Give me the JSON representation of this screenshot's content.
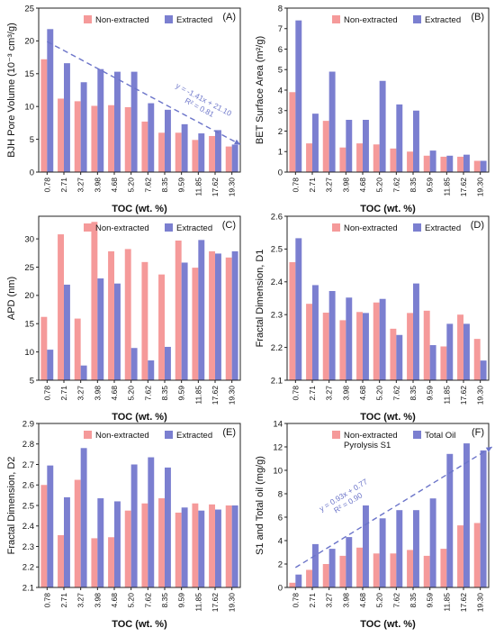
{
  "colors": {
    "non_extracted": "#f59a9a",
    "extracted": "#7b7fd0",
    "trend": "#6b74c9"
  },
  "chart_data": [
    {
      "type": "bar",
      "panel": "(A)",
      "categories": [
        "0.78",
        "2.71",
        "3.27",
        "3.98",
        "4.68",
        "5.20",
        "7.62",
        "8.35",
        "9.59",
        "11.85",
        "17.62",
        "19.30"
      ],
      "ylabel": "BJH Pore Volume (10⁻³ cm³/g)",
      "xlabel": "TOC (wt. %)",
      "ylim": [
        0,
        25
      ],
      "yticks": [
        0,
        5,
        10,
        15,
        20,
        25
      ],
      "series": [
        {
          "name": "Non-extracted",
          "values": [
            17.2,
            11.2,
            10.8,
            10.1,
            10.2,
            9.9,
            7.7,
            6.0,
            6.0,
            4.9,
            5.5,
            3.9
          ]
        },
        {
          "name": "Extracted",
          "values": [
            21.8,
            16.6,
            13.7,
            15.7,
            15.3,
            15.3,
            10.5,
            9.5,
            7.3,
            5.9,
            6.4,
            4.2
          ]
        }
      ],
      "trendline": {
        "equation": "y = -1.41x + 21.10",
        "r2": "R² = 0.81",
        "from": [
          0,
          19.9
        ],
        "to": [
          11.5,
          4.2
        ]
      }
    },
    {
      "type": "bar",
      "panel": "(B)",
      "categories": [
        "0.78",
        "2.71",
        "3.27",
        "3.98",
        "4.68",
        "5.20",
        "7.62",
        "8.35",
        "9.59",
        "11.85",
        "17.62",
        "19.30"
      ],
      "ylabel": "BET Surface Area (m²/g)",
      "xlabel": "TOC (wt. %)",
      "ylim": [
        0,
        8
      ],
      "yticks": [
        0,
        1,
        2,
        3,
        4,
        5,
        6,
        7,
        8
      ],
      "series": [
        {
          "name": "Non-extracted",
          "values": [
            3.9,
            1.4,
            2.5,
            1.2,
            1.4,
            1.35,
            1.15,
            1.0,
            0.8,
            0.75,
            0.75,
            0.55
          ]
        },
        {
          "name": "Extracted",
          "values": [
            7.4,
            2.85,
            4.9,
            2.55,
            2.55,
            4.45,
            3.3,
            3.0,
            1.05,
            0.8,
            0.85,
            0.55
          ]
        }
      ]
    },
    {
      "type": "bar",
      "panel": "(C)",
      "categories": [
        "0.78",
        "2.71",
        "3.27",
        "3.98",
        "4.68",
        "5.20",
        "7.62",
        "8.35",
        "9.59",
        "11.85",
        "17.62",
        "19.30"
      ],
      "ylabel": "APD (nm)",
      "xlabel": "TOC (wt. %)",
      "ylim": [
        5,
        34
      ],
      "yticks": [
        5,
        10,
        15,
        20,
        25,
        30
      ],
      "series": [
        {
          "name": "Non-extracted",
          "values": [
            16.2,
            30.8,
            15.9,
            33.0,
            27.8,
            28.2,
            25.9,
            23.7,
            29.7,
            24.9,
            27.8,
            26.7
          ]
        },
        {
          "name": "Extracted",
          "values": [
            10.4,
            21.9,
            7.6,
            23.0,
            22.1,
            10.7,
            8.5,
            10.9,
            25.8,
            29.8,
            27.4,
            27.8
          ]
        }
      ]
    },
    {
      "type": "bar",
      "panel": "(D)",
      "categories": [
        "0.78",
        "2.71",
        "3.27",
        "3.98",
        "4.68",
        "5.20",
        "7.62",
        "8.35",
        "9.59",
        "11.85",
        "17.62",
        "19.30"
      ],
      "ylabel": "Fractal Dimension, D1",
      "xlabel": "TOC (wt. %)",
      "ylim": [
        2.1,
        2.6
      ],
      "yticks": [
        2.1,
        2.2,
        2.3,
        2.4,
        2.5,
        2.6
      ],
      "series": [
        {
          "name": "Non-extracted",
          "values": [
            2.46,
            2.333,
            2.306,
            2.283,
            2.308,
            2.337,
            2.257,
            2.305,
            2.312,
            2.203,
            2.3,
            2.226
          ]
        },
        {
          "name": "Extracted",
          "values": [
            2.533,
            2.39,
            2.372,
            2.352,
            2.305,
            2.348,
            2.238,
            2.395,
            2.207,
            2.272,
            2.272,
            2.16
          ]
        }
      ]
    },
    {
      "type": "bar",
      "panel": "(E)",
      "categories": [
        "0.78",
        "2.71",
        "3.27",
        "3.98",
        "4.68",
        "5.20",
        "7.62",
        "8.35",
        "9.59",
        "11.85",
        "17.62",
        "19.30"
      ],
      "ylabel": "Fractal Dimension, D2",
      "xlabel": "TOC (wt. %)",
      "ylim": [
        2.1,
        2.9
      ],
      "yticks": [
        2.1,
        2.2,
        2.3,
        2.4,
        2.5,
        2.6,
        2.7,
        2.8,
        2.9
      ],
      "series": [
        {
          "name": "Non-extracted",
          "values": [
            2.6,
            2.355,
            2.625,
            2.34,
            2.345,
            2.475,
            2.51,
            2.535,
            2.465,
            2.51,
            2.505,
            2.5
          ]
        },
        {
          "name": "Extracted",
          "values": [
            2.695,
            2.54,
            2.78,
            2.535,
            2.52,
            2.7,
            2.735,
            2.685,
            2.49,
            2.475,
            2.48,
            2.5
          ]
        }
      ]
    },
    {
      "type": "bar",
      "panel": "(F)",
      "categories": [
        "0.78",
        "2.71",
        "3.27",
        "3.98",
        "4.68",
        "5.20",
        "7.62",
        "8.35",
        "9.59",
        "11.85",
        "17.62",
        "19.30"
      ],
      "ylabel": "S1 and Total oil (mg/g)",
      "xlabel": "TOC (wt. %)",
      "ylim": [
        0,
        14
      ],
      "yticks": [
        0,
        2,
        4,
        6,
        8,
        10,
        12,
        14
      ],
      "series": [
        {
          "name": "Non-extracted Pyrolysis S1",
          "values": [
            0.4,
            1.5,
            2.0,
            2.7,
            3.4,
            2.9,
            2.9,
            3.2,
            2.7,
            3.3,
            5.3,
            5.5
          ]
        },
        {
          "name": "Total Oil",
          "values": [
            1.1,
            3.7,
            3.3,
            4.3,
            7.0,
            5.9,
            6.6,
            6.6,
            7.6,
            11.4,
            12.3,
            11.7
          ]
        }
      ],
      "trendline": {
        "equation": "y = 0.93x + 0.77",
        "r2": "R² = 0.90",
        "from": [
          0,
          1.7
        ],
        "to": [
          11.7,
          12.0
        ]
      }
    }
  ]
}
